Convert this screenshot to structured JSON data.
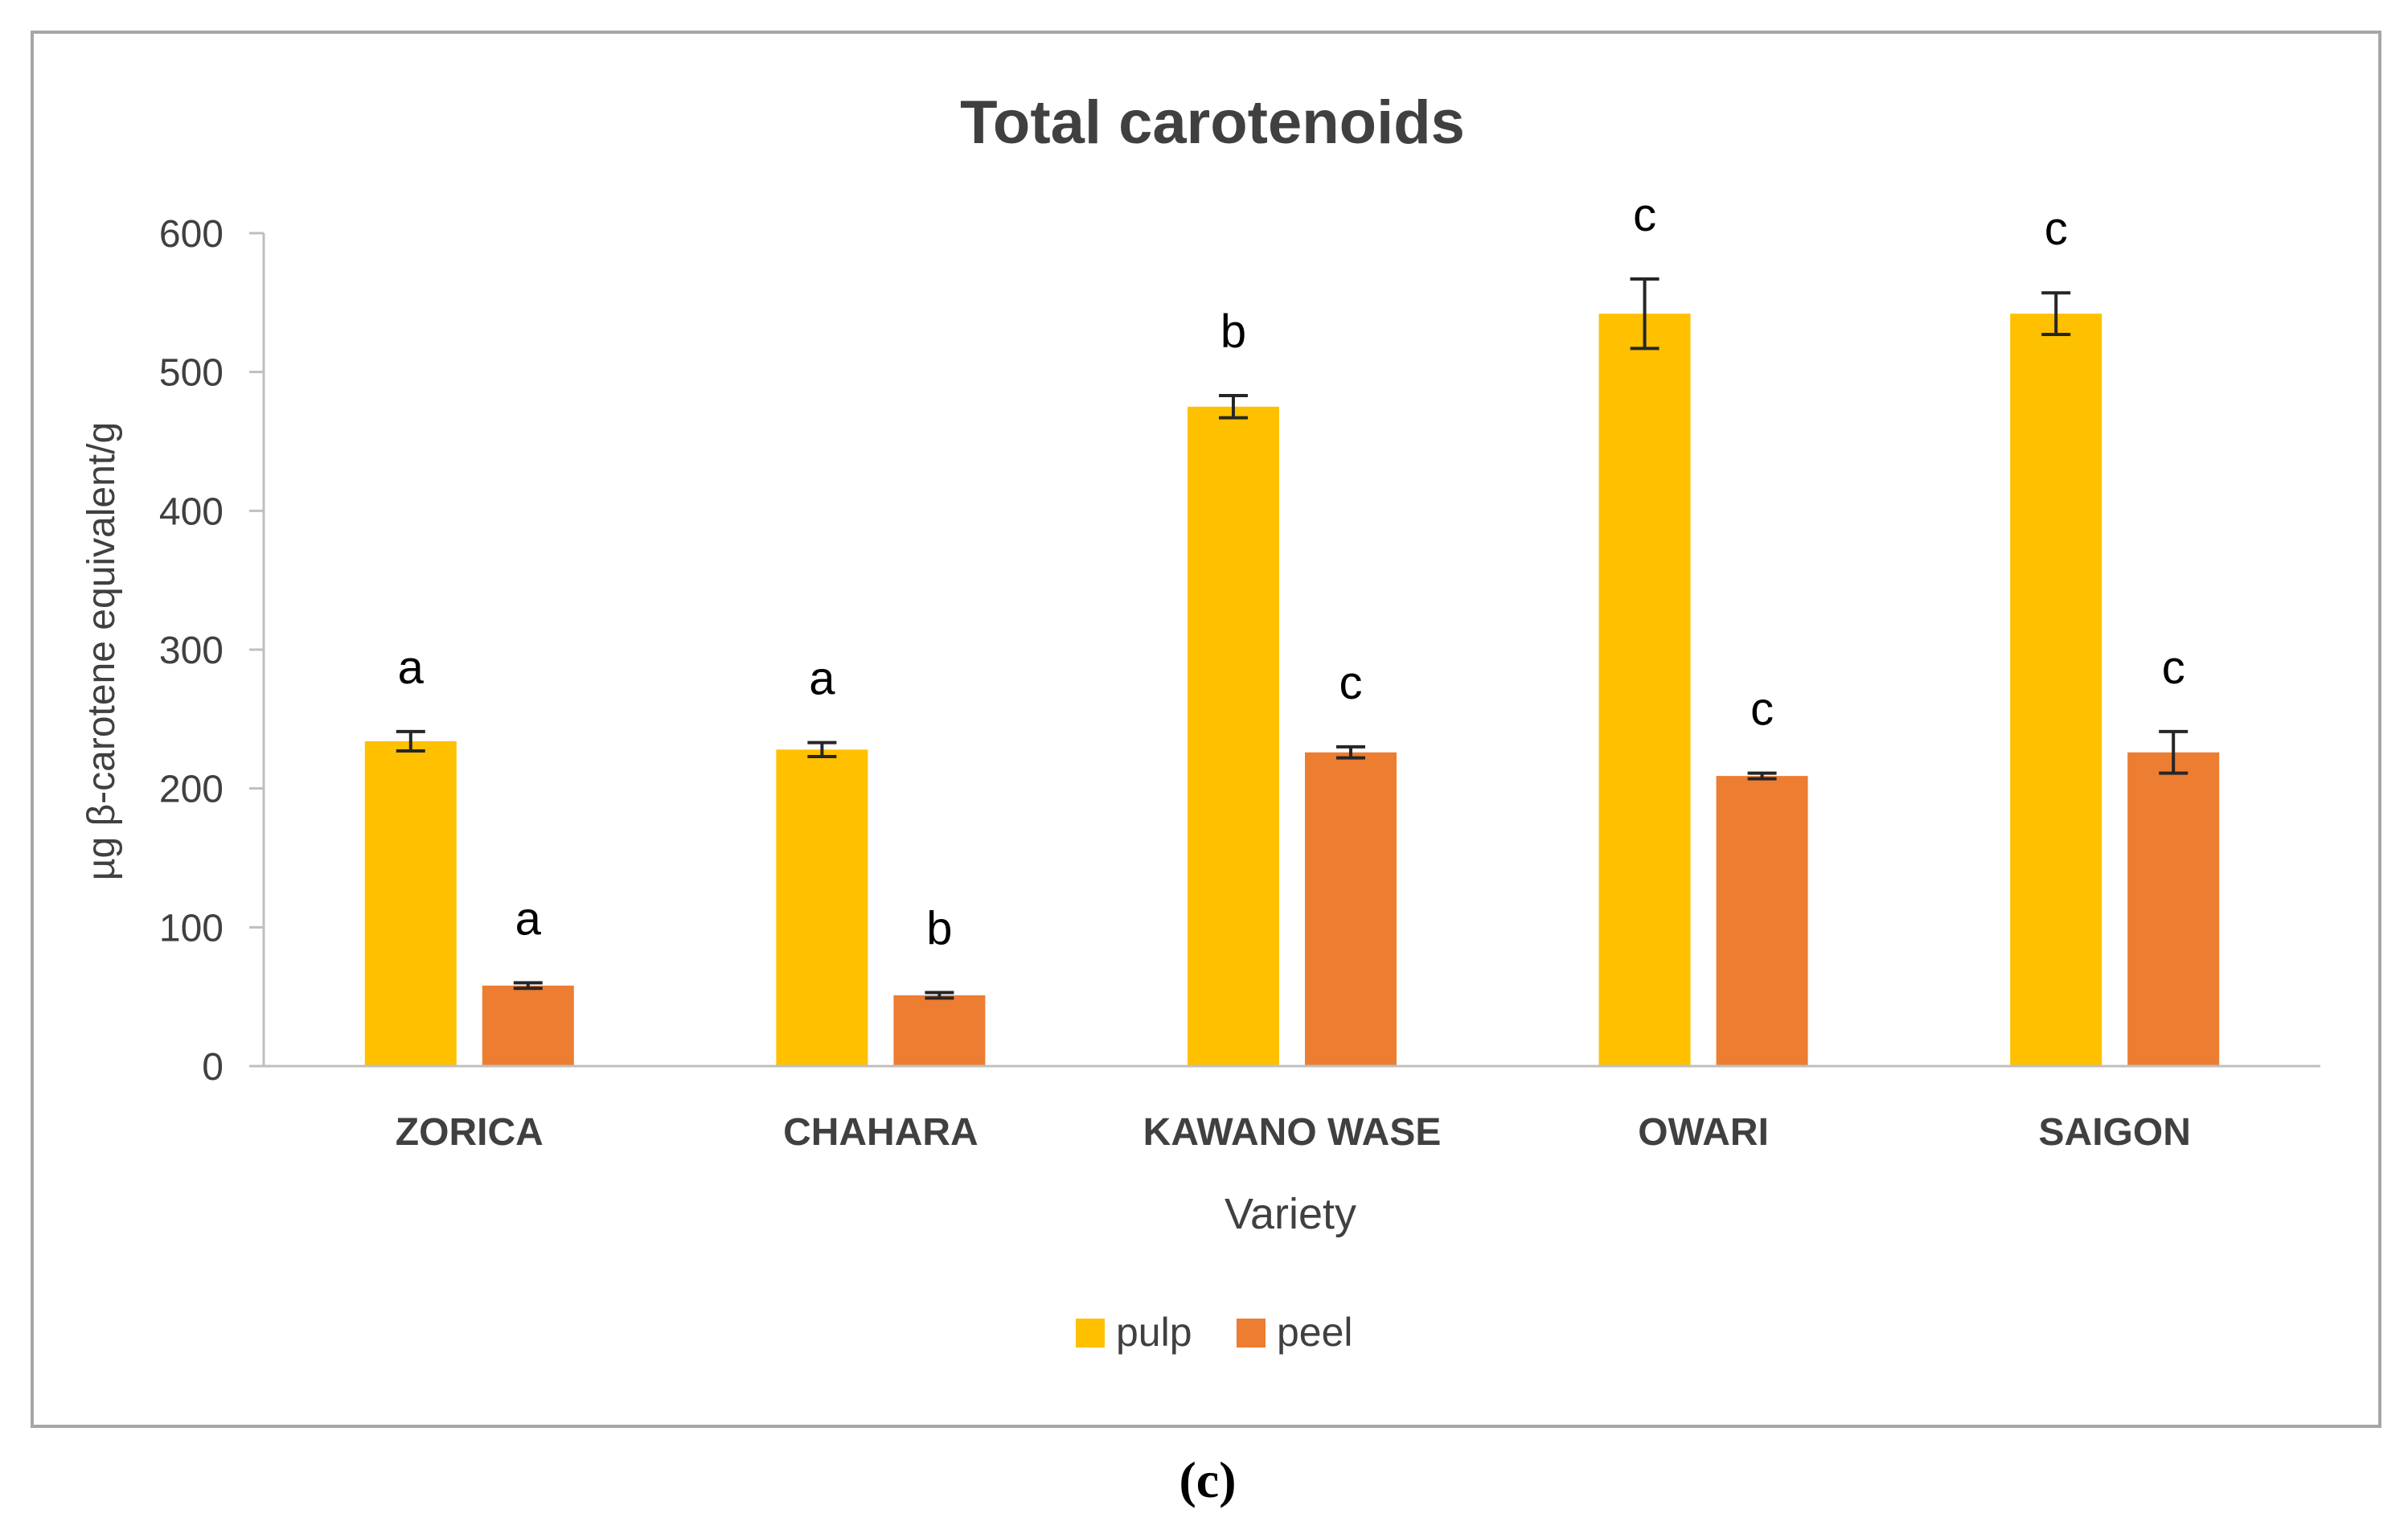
{
  "colors": {
    "pulp": "#FFC000",
    "peel": "#ED7D31",
    "axis": "#BFBFBF",
    "text": "#404040",
    "frame": "#A6A6A6"
  },
  "panel_label": "(c)",
  "chart_data": {
    "type": "bar",
    "title": "Total carotenoids",
    "xlabel": "Variety",
    "ylabel": "µg β-carotene equivalent/g",
    "ylim": [
      0,
      600
    ],
    "yticks": [
      0,
      100,
      200,
      300,
      400,
      500,
      600
    ],
    "grid": false,
    "legend_position": "bottom",
    "categories": [
      "ZORICA",
      "CHAHARA",
      "KAWANO WASE",
      "OWARI",
      "SAIGON"
    ],
    "series": [
      {
        "name": "pulp",
        "values": [
          234,
          228,
          475,
          542,
          542
        ],
        "errors": [
          7,
          5,
          8,
          25,
          15
        ],
        "letters": [
          "a",
          "a",
          "b",
          "c",
          "c"
        ]
      },
      {
        "name": "peel",
        "values": [
          58,
          51,
          226,
          209,
          226
        ],
        "errors": [
          2,
          2,
          4,
          2,
          15
        ],
        "letters": [
          "a",
          "b",
          "c",
          "c",
          "c"
        ]
      }
    ]
  }
}
